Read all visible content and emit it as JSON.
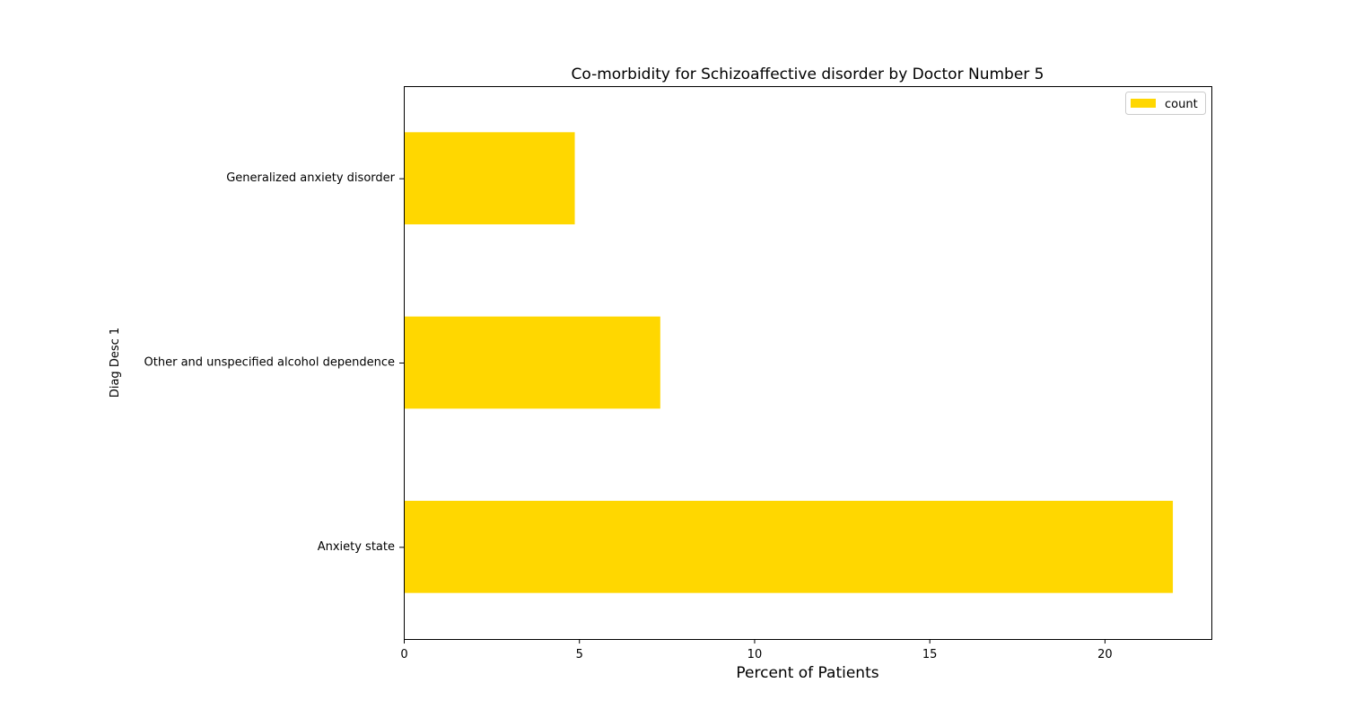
{
  "chart_data": {
    "type": "bar",
    "orientation": "horizontal",
    "title": "Co-morbidity for Schizoaffective disorder by Doctor Number 5",
    "xlabel": "Percent of Patients",
    "ylabel": "Diag Desc 1",
    "categories": [
      "Anxiety state",
      "Other and unspecified alcohol dependence",
      "Generalized anxiety disorder"
    ],
    "series": [
      {
        "name": "count",
        "values": [
          21.95,
          7.32,
          4.88
        ],
        "color": "#FFD700"
      }
    ],
    "xlim": [
      0,
      23.05
    ],
    "xticks": [
      0,
      5,
      10,
      15,
      20
    ],
    "grid": false,
    "legend_position": "top-right"
  }
}
